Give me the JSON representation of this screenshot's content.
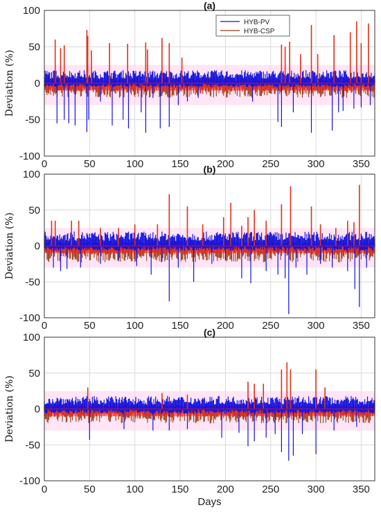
{
  "figure": {
    "colors": {
      "pv": "#1010e0",
      "csp": "#9a3a10",
      "csp_fill": "#ff1a1a",
      "band": "#ffd0ec",
      "grid": "#d9d9d9"
    }
  },
  "chart_data": [
    {
      "type": "line",
      "title": "(a)",
      "xlabel": "",
      "ylabel": "Deviation (%)",
      "xlim": [
        0,
        365
      ],
      "ylim": [
        -100,
        100
      ],
      "xticks": [
        "0",
        "50",
        "100",
        "150",
        "200",
        "250",
        "300",
        "350"
      ],
      "yticks": [
        "100",
        "50",
        "0",
        "-50",
        "-100"
      ],
      "grid": true,
      "legend": {
        "position": "top-right",
        "entries": [
          "HYB-PV",
          "HYB-CSP"
        ]
      },
      "series": [
        {
          "name": "HYB-PV",
          "color": "#1010e0",
          "envelope_pos": 18,
          "envelope_neg": -18,
          "spikes": [
            [
              14,
              -55
            ],
            [
              22,
              -50
            ],
            [
              27,
              -55
            ],
            [
              34,
              -58
            ],
            [
              47,
              -67
            ],
            [
              49,
              -50
            ],
            [
              62,
              -25
            ],
            [
              75,
              -58
            ],
            [
              87,
              -50
            ],
            [
              93,
              -62
            ],
            [
              107,
              -40
            ],
            [
              112,
              -68
            ],
            [
              120,
              -20
            ],
            [
              128,
              -62
            ],
            [
              138,
              -60
            ],
            [
              148,
              -30
            ],
            [
              158,
              -25
            ],
            [
              170,
              -20
            ],
            [
              230,
              -25
            ],
            [
              258,
              -53
            ],
            [
              262,
              -60
            ],
            [
              275,
              -40
            ],
            [
              295,
              -68
            ],
            [
              318,
              -65
            ],
            [
              325,
              -40
            ],
            [
              330,
              -38
            ],
            [
              342,
              -35
            ],
            [
              350,
              -33
            ],
            [
              360,
              -30
            ]
          ]
        },
        {
          "name": "HYB-CSP",
          "color": "#9a3a10",
          "envelope_pos": 10,
          "envelope_neg": -20,
          "spikes": [
            [
              12,
              60
            ],
            [
              18,
              48
            ],
            [
              22,
              52
            ],
            [
              47,
              73
            ],
            [
              48,
              65
            ],
            [
              52,
              45
            ],
            [
              72,
              55
            ],
            [
              92,
              54
            ],
            [
              112,
              56
            ],
            [
              114,
              46
            ],
            [
              130,
              62
            ],
            [
              138,
              55
            ],
            [
              152,
              35
            ],
            [
              262,
              53
            ],
            [
              266,
              50
            ],
            [
              271,
              57
            ],
            [
              283,
              40
            ],
            [
              295,
              80
            ],
            [
              302,
              40
            ],
            [
              320,
              66
            ],
            [
              338,
              70
            ],
            [
              345,
              85
            ],
            [
              350,
              55
            ],
            [
              358,
              82
            ]
          ]
        }
      ]
    },
    {
      "type": "line",
      "title": "(b)",
      "xlabel": "",
      "ylabel": "Deviation (%)",
      "xlim": [
        0,
        365
      ],
      "ylim": [
        -100,
        100
      ],
      "xticks": [
        "0",
        "50",
        "100",
        "150",
        "200",
        "250",
        "300",
        "350"
      ],
      "yticks": [
        "100",
        "50",
        "0",
        "-50",
        "-100"
      ],
      "grid": true,
      "series": [
        {
          "name": "HYB-PV",
          "color": "#1010e0",
          "envelope_pos": 20,
          "envelope_neg": -22,
          "spikes": [
            [
              10,
              -30
            ],
            [
              18,
              -35
            ],
            [
              25,
              -32
            ],
            [
              40,
              -30
            ],
            [
              62,
              -25
            ],
            [
              82,
              -20
            ],
            [
              102,
              -28
            ],
            [
              118,
              -40
            ],
            [
              130,
              -22
            ],
            [
              138,
              -77
            ],
            [
              148,
              -30
            ],
            [
              165,
              -50
            ],
            [
              185,
              -25
            ],
            [
              200,
              -20
            ],
            [
              218,
              -45
            ],
            [
              228,
              -52
            ],
            [
              245,
              -35
            ],
            [
              258,
              -40
            ],
            [
              266,
              -45
            ],
            [
              270,
              -95
            ],
            [
              278,
              -30
            ],
            [
              290,
              -40
            ],
            [
              305,
              -25
            ],
            [
              318,
              -30
            ],
            [
              335,
              -35
            ],
            [
              343,
              -60
            ],
            [
              348,
              -85
            ],
            [
              356,
              -30
            ]
          ]
        },
        {
          "name": "HYB-CSP",
          "color": "#9a3a10",
          "envelope_pos": 10,
          "envelope_neg": -23,
          "spikes": [
            [
              8,
              35
            ],
            [
              12,
              35
            ],
            [
              30,
              35
            ],
            [
              38,
              35
            ],
            [
              62,
              25
            ],
            [
              82,
              25
            ],
            [
              100,
              30
            ],
            [
              125,
              30
            ],
            [
              138,
              72
            ],
            [
              158,
              55
            ],
            [
              175,
              30
            ],
            [
              198,
              40
            ],
            [
              206,
              60
            ],
            [
              218,
              28
            ],
            [
              225,
              40
            ],
            [
              232,
              50
            ],
            [
              245,
              35
            ],
            [
              262,
              58
            ],
            [
              272,
              83
            ],
            [
              295,
              55
            ],
            [
              305,
              30
            ],
            [
              322,
              25
            ],
            [
              335,
              35
            ],
            [
              342,
              33
            ],
            [
              348,
              85
            ]
          ]
        }
      ]
    },
    {
      "type": "line",
      "title": "(c)",
      "xlabel": "Days",
      "ylabel": "Deviation (%)",
      "xlim": [
        0,
        365
      ],
      "ylim": [
        -100,
        100
      ],
      "xticks": [
        "0",
        "50",
        "100",
        "150",
        "200",
        "250",
        "300",
        "350"
      ],
      "yticks": [
        "100",
        "50",
        "0",
        "-50",
        "-100"
      ],
      "grid": true,
      "series": [
        {
          "name": "HYB-PV",
          "color": "#1010e0",
          "envelope_pos": 18,
          "envelope_neg": -22,
          "spikes": [
            [
              50,
              -43
            ],
            [
              88,
              -28
            ],
            [
              120,
              -30
            ],
            [
              138,
              -30
            ],
            [
              158,
              -28
            ],
            [
              196,
              -40
            ],
            [
              215,
              -33
            ],
            [
              225,
              -52
            ],
            [
              232,
              -45
            ],
            [
              245,
              -40
            ],
            [
              255,
              -35
            ],
            [
              262,
              -60
            ],
            [
              270,
              -72
            ],
            [
              275,
              -65
            ],
            [
              285,
              -35
            ],
            [
              300,
              -63
            ],
            [
              320,
              -30
            ],
            [
              345,
              -25
            ]
          ]
        },
        {
          "name": "HYB-CSP",
          "color": "#9a3a10",
          "envelope_pos": 8,
          "envelope_neg": -20,
          "spikes": [
            [
              48,
              30
            ],
            [
              130,
              22
            ],
            [
              158,
              20
            ],
            [
              225,
              38
            ],
            [
              232,
              35
            ],
            [
              242,
              35
            ],
            [
              262,
              55
            ],
            [
              268,
              65
            ],
            [
              272,
              55
            ],
            [
              300,
              55
            ],
            [
              310,
              30
            ]
          ]
        }
      ]
    }
  ]
}
